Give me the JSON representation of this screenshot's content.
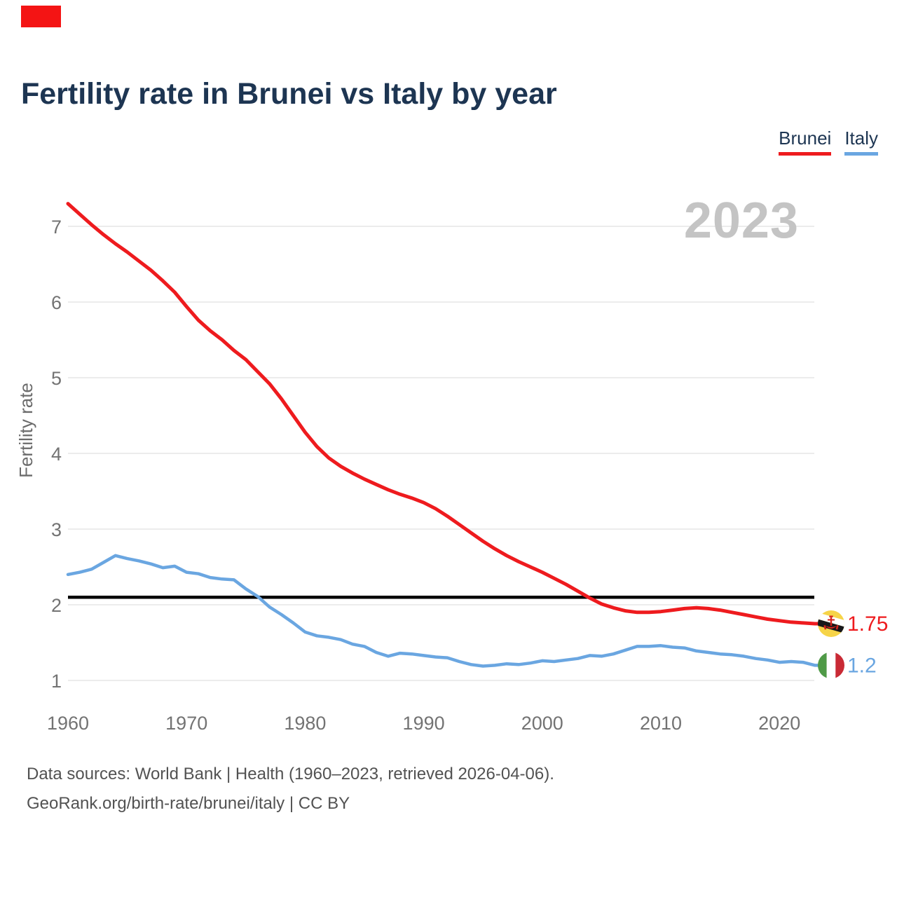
{
  "marker": {
    "color": "#f41414"
  },
  "header": {
    "title": "Fertility rate in Brunei vs Italy by year"
  },
  "legend": [
    {
      "label": "Brunei",
      "color": "#ee1b1e"
    },
    {
      "label": "Italy",
      "color": "#6aa6e1"
    }
  ],
  "watermark": "2023",
  "end_labels": [
    {
      "country": "Brunei",
      "value": "1.75"
    },
    {
      "country": "Italy",
      "value": "1.2"
    }
  ],
  "footer": {
    "line1": "Data sources: World Bank | Health (1960–2023, retrieved 2026-04-06).",
    "line2": "GeoRank.org/birth-rate/brunei/italy | CC BY"
  },
  "chart_data": {
    "type": "line",
    "title": "Fertility rate in Brunei vs Italy by year",
    "xlabel": "",
    "ylabel": "Fertility rate",
    "xlim": [
      1960,
      2023
    ],
    "ylim": [
      1,
      7.5
    ],
    "xticks": [
      1960,
      1970,
      1980,
      1990,
      2000,
      2010,
      2020
    ],
    "yticks": [
      1,
      2,
      3,
      4,
      5,
      6,
      7
    ],
    "grid": "horizontal",
    "legend_position": "top-right",
    "reference_line": {
      "value": 2.1,
      "color": "#000000"
    },
    "x": [
      1960,
      1961,
      1962,
      1963,
      1964,
      1965,
      1966,
      1967,
      1968,
      1969,
      1970,
      1971,
      1972,
      1973,
      1974,
      1975,
      1976,
      1977,
      1978,
      1979,
      1980,
      1981,
      1982,
      1983,
      1984,
      1985,
      1986,
      1987,
      1988,
      1989,
      1990,
      1991,
      1992,
      1993,
      1994,
      1995,
      1996,
      1997,
      1998,
      1999,
      2000,
      2001,
      2002,
      2003,
      2004,
      2005,
      2006,
      2007,
      2008,
      2009,
      2010,
      2011,
      2012,
      2013,
      2014,
      2015,
      2016,
      2017,
      2018,
      2019,
      2020,
      2021,
      2022,
      2023
    ],
    "series": [
      {
        "name": "Brunei",
        "color": "#ee1b1e",
        "values": [
          7.3,
          7.16,
          7.02,
          6.89,
          6.77,
          6.66,
          6.54,
          6.42,
          6.28,
          6.13,
          5.94,
          5.76,
          5.62,
          5.5,
          5.36,
          5.24,
          5.08,
          4.92,
          4.72,
          4.5,
          4.28,
          4.09,
          3.94,
          3.83,
          3.74,
          3.66,
          3.59,
          3.52,
          3.46,
          3.41,
          3.35,
          3.27,
          3.17,
          3.06,
          2.95,
          2.84,
          2.74,
          2.65,
          2.57,
          2.5,
          2.43,
          2.35,
          2.27,
          2.18,
          2.09,
          2.01,
          1.96,
          1.92,
          1.9,
          1.9,
          1.91,
          1.93,
          1.95,
          1.96,
          1.95,
          1.93,
          1.9,
          1.87,
          1.84,
          1.81,
          1.79,
          1.77,
          1.76,
          1.75
        ]
      },
      {
        "name": "Italy",
        "color": "#6aa6e1",
        "values": [
          2.4,
          2.43,
          2.47,
          2.56,
          2.65,
          2.61,
          2.58,
          2.54,
          2.49,
          2.51,
          2.43,
          2.41,
          2.36,
          2.34,
          2.33,
          2.21,
          2.11,
          1.97,
          1.87,
          1.76,
          1.64,
          1.59,
          1.57,
          1.54,
          1.48,
          1.45,
          1.37,
          1.32,
          1.36,
          1.35,
          1.33,
          1.31,
          1.3,
          1.25,
          1.21,
          1.19,
          1.2,
          1.22,
          1.21,
          1.23,
          1.26,
          1.25,
          1.27,
          1.29,
          1.33,
          1.32,
          1.35,
          1.4,
          1.45,
          1.45,
          1.46,
          1.44,
          1.43,
          1.39,
          1.37,
          1.35,
          1.34,
          1.32,
          1.29,
          1.27,
          1.24,
          1.25,
          1.24,
          1.2
        ]
      }
    ]
  }
}
